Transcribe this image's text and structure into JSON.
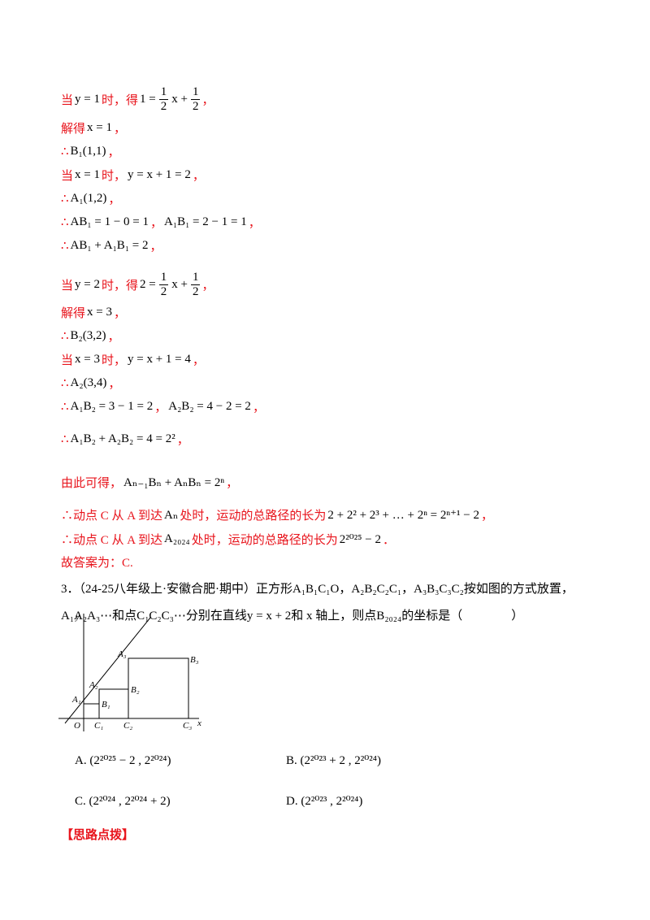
{
  "solution": {
    "lines": [
      [
        {
          "zh": "当"
        },
        {
          "m": "y = 1"
        },
        {
          "zh": "时，得"
        },
        {
          "m": "1 = "
        },
        {
          "frac": [
            "1",
            "2"
          ]
        },
        {
          "m": "x + "
        },
        {
          "frac": [
            "1",
            "2"
          ]
        },
        {
          "zh": "，"
        }
      ],
      [
        {
          "zh": "解得"
        },
        {
          "m": "x = 1"
        },
        {
          "zh": "，"
        }
      ],
      [
        {
          "zh": "∴"
        },
        {
          "m": "B₁(1,1)"
        },
        {
          "zh": "，"
        }
      ],
      [
        {
          "zh": "当"
        },
        {
          "m": "x = 1"
        },
        {
          "zh": "时，"
        },
        {
          "m": "y = x + 1 = 2"
        },
        {
          "zh": "，"
        }
      ],
      [
        {
          "zh": "∴"
        },
        {
          "m": "A₁(1,2)"
        },
        {
          "zh": "，"
        }
      ],
      [
        {
          "zh": "∴"
        },
        {
          "m": "AB₁ = 1 − 0 = 1"
        },
        {
          "zh": "，"
        },
        {
          "m": "A₁B₁ = 2 − 1 = 1"
        },
        {
          "zh": "，"
        }
      ],
      [
        {
          "zh": "∴"
        },
        {
          "m": "AB₁ + A₁B₁ = 2"
        },
        {
          "zh": "，"
        }
      ],
      [
        {
          "zh": "当"
        },
        {
          "m": "y = 2"
        },
        {
          "zh": "时，得"
        },
        {
          "m": "2 = "
        },
        {
          "frac": [
            "1",
            "2"
          ]
        },
        {
          "m": "x + "
        },
        {
          "frac": [
            "1",
            "2"
          ]
        },
        {
          "zh": "，"
        }
      ],
      [
        {
          "zh": "解得"
        },
        {
          "m": "x = 3"
        },
        {
          "zh": "，"
        }
      ],
      [
        {
          "zh": "∴"
        },
        {
          "m": "B₂(3,2)"
        },
        {
          "zh": "，"
        }
      ],
      [
        {
          "zh": "当"
        },
        {
          "m": "x = 3"
        },
        {
          "zh": "时，"
        },
        {
          "m": "y = x + 1 = 4"
        },
        {
          "zh": "，"
        }
      ],
      [
        {
          "zh": "∴"
        },
        {
          "m": "A₂(3,4)"
        },
        {
          "zh": "，"
        }
      ],
      [
        {
          "zh": "∴"
        },
        {
          "m": "A₁B₂ = 3 − 1 = 2"
        },
        {
          "zh": "，"
        },
        {
          "m": "A₂B₂ = 4 − 2 = 2"
        },
        {
          "zh": "，"
        }
      ],
      [
        {
          "zh": "∴"
        },
        {
          "m": "A₁B₂ + A₂B₂ = 4 = 2²"
        },
        {
          "zh": "，"
        }
      ],
      [
        {
          "zh": "由此可得，"
        },
        {
          "m": "Aₙ₋₁Bₙ + AₙBₙ = 2ⁿ"
        },
        {
          "zh": "，"
        }
      ],
      [
        {
          "zh": "∴动点 C 从 A 到达"
        },
        {
          "m": "Aₙ"
        },
        {
          "zh": "处时，运动的总路径的长为"
        },
        {
          "m": "2 + 2² + 2³ + … + 2ⁿ = 2ⁿ⁺¹ − 2"
        },
        {
          "zh": "，"
        }
      ],
      [
        {
          "zh": "∴动点 C 从 A 到达"
        },
        {
          "m": "A₂₀₂₄"
        },
        {
          "zh": "处时，运动的总路径的长为"
        },
        {
          "m": "2²⁰²⁵ − 2"
        },
        {
          "zh": "．"
        }
      ],
      [
        {
          "zh": "故答案为：C."
        }
      ]
    ]
  },
  "question": {
    "lines": [
      "3．（24-25八年级上·安徽合肥·期中）正方形A₁B₁C₁O，A₂B₂C₂C₁，A₃B₃C₃C₂按如图的方式放置，",
      "A₁A₂A₃⋯和点C₁C₂C₃⋯分别在直线y = x + 2和 x 轴上，则点B₂₀₂₄的坐标是（　　　　）"
    ],
    "figure": {
      "y": "y",
      "x": "x",
      "O": "O",
      "A1": "A₁",
      "A2": "A₂",
      "A3": "A₃",
      "B1": "B₁",
      "B2": "B₂",
      "B3": "B₃",
      "C1": "C₁",
      "C2": "C₂",
      "C3": "C₃"
    },
    "options": [
      "A.  (2²⁰²⁵ − 2 , 2²⁰²⁴)",
      "B.  (2²⁰²³ + 2 , 2²⁰²⁴)",
      "C.  (2²⁰²⁴ , 2²⁰²⁴ + 2)",
      "D.  (2²⁰²³ , 2²⁰²⁴)"
    ]
  },
  "footer": "【思路点拨】"
}
